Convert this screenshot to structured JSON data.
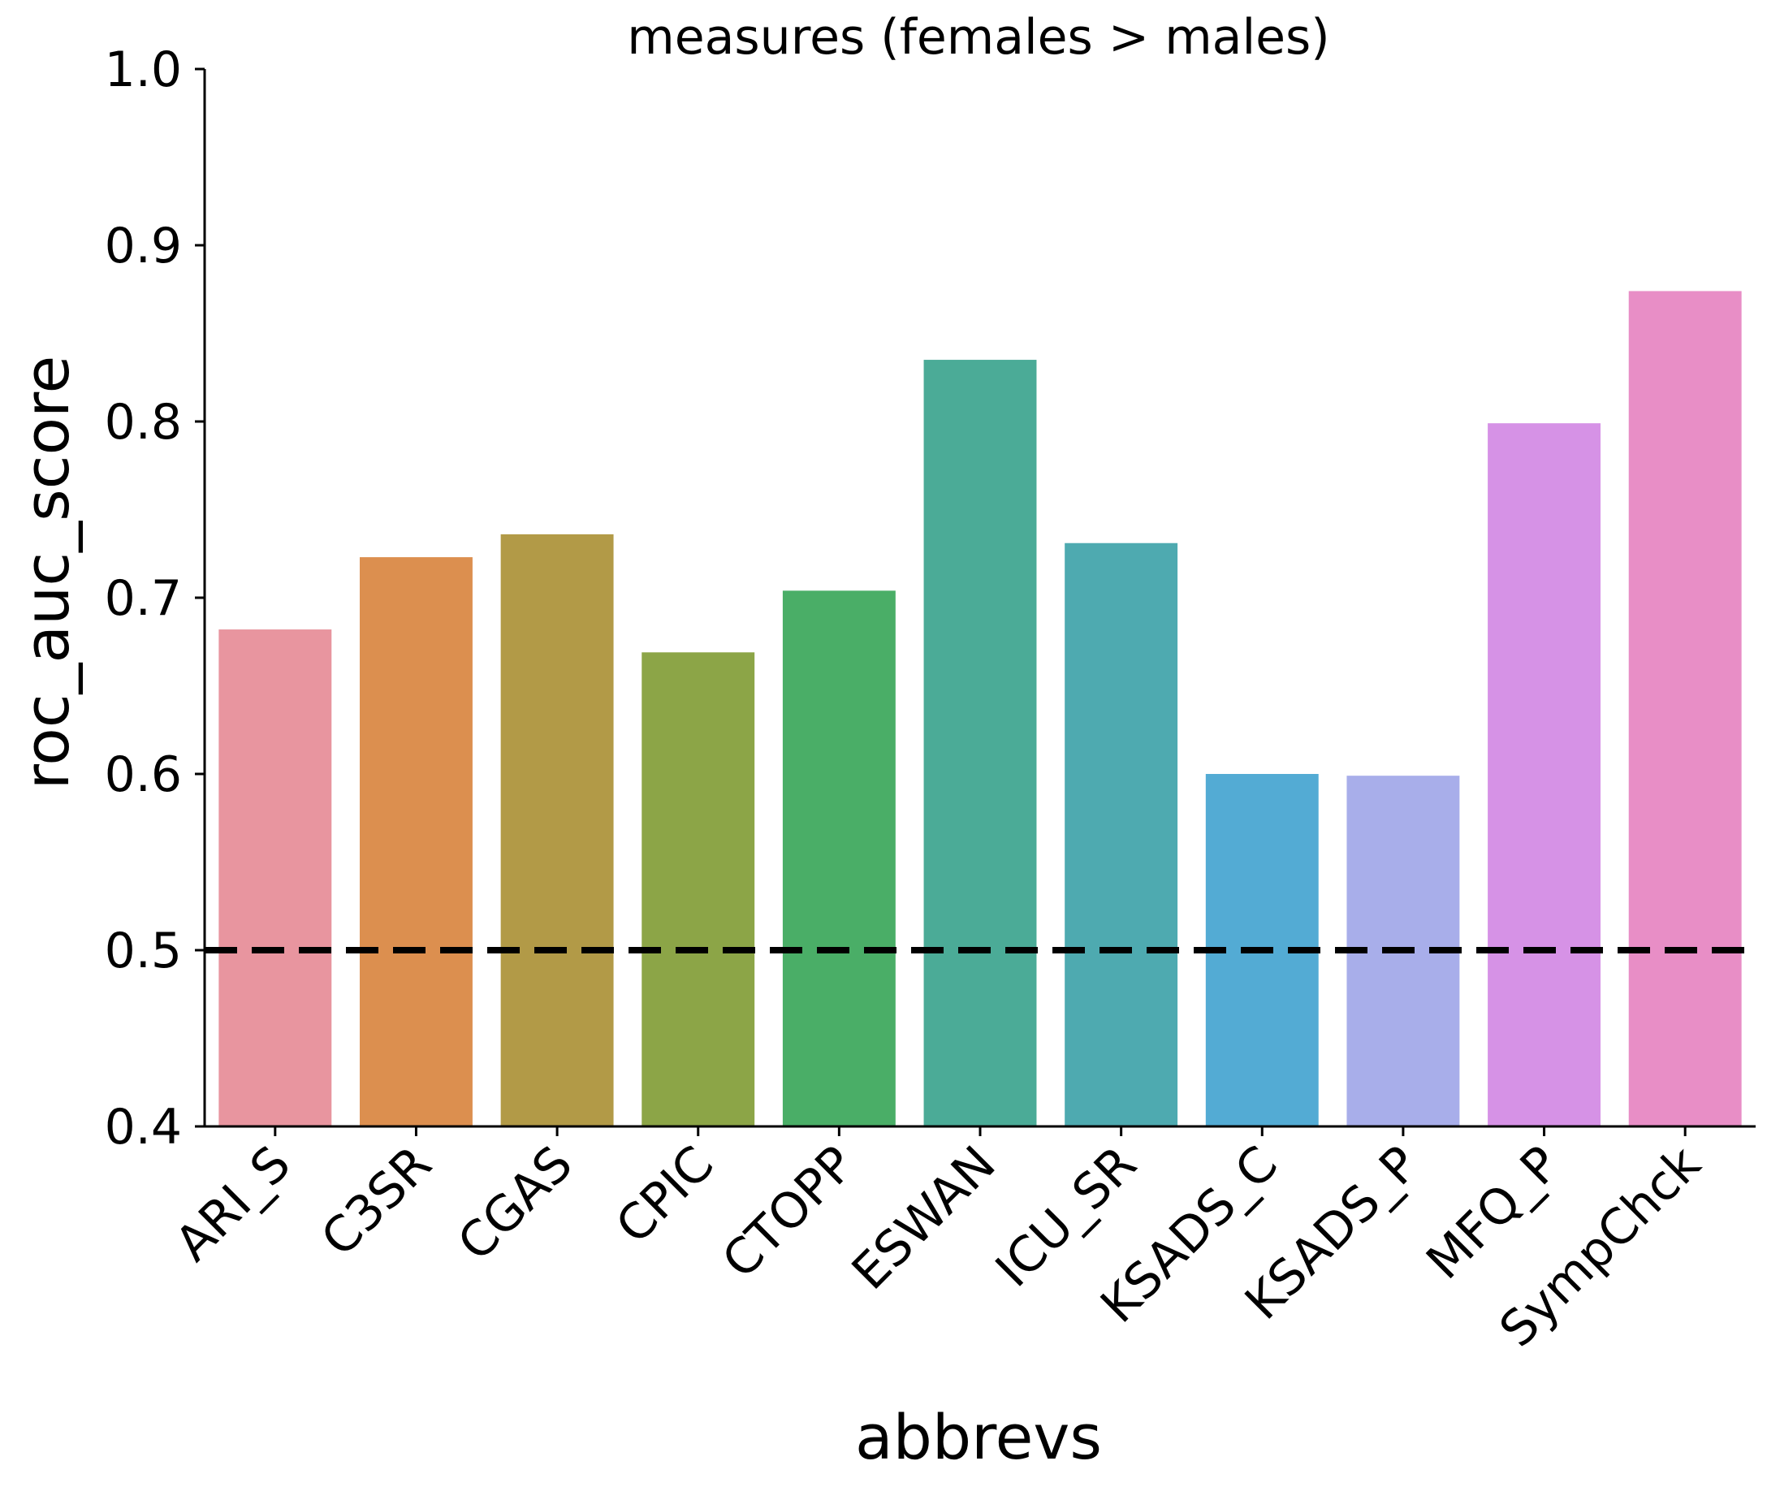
{
  "chart_data": {
    "type": "bar",
    "title": "measures (females > males)",
    "xlabel": "abbrevs",
    "ylabel": "roc_auc_score",
    "ylim": [
      0.4,
      1.0
    ],
    "yticks": [
      "0.4",
      "0.5",
      "0.6",
      "0.7",
      "0.8",
      "0.9",
      "1.0"
    ],
    "categories": [
      "ARI_S",
      "C3SR",
      "CGAS",
      "CPIC",
      "CTOPP",
      "ESWAN",
      "ICU_SR",
      "KSADS_C",
      "KSADS_P",
      "MFQ_P",
      "SympChck"
    ],
    "values": [
      0.682,
      0.723,
      0.736,
      0.669,
      0.704,
      0.835,
      0.731,
      0.6,
      0.599,
      0.799,
      0.874
    ],
    "colors": [
      "#e8959f",
      "#dc8f4f",
      "#b29a47",
      "#8ca547",
      "#4aae67",
      "#4bab97",
      "#4eaab0",
      "#53abd4",
      "#a8aeea",
      "#d692e6",
      "#e88ec6"
    ],
    "reference_line": {
      "y": 0.5,
      "style": "dashed",
      "color": "#000000"
    },
    "grid": false,
    "legend": "none"
  }
}
